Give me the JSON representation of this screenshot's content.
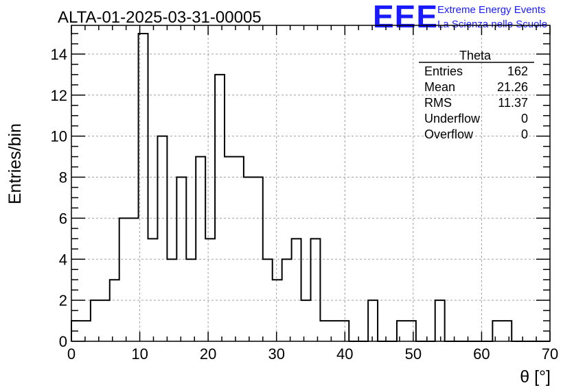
{
  "chart_data": {
    "type": "histogram",
    "title": "ALTA-01-2025-03-31-00005",
    "xlabel": "θ [°]",
    "ylabel": "Entries/bin",
    "xlim": [
      0,
      70
    ],
    "ylim": [
      0,
      15.4
    ],
    "bin_width": 1.4,
    "bin_start": 0,
    "values": [
      1,
      1,
      2,
      2,
      3,
      6,
      6,
      15,
      5,
      10,
      4,
      8,
      4,
      9,
      5,
      13,
      9,
      9,
      8,
      8,
      4,
      3,
      4,
      5,
      2,
      5,
      1,
      1,
      1,
      0,
      0,
      2,
      0,
      0,
      1,
      1,
      0,
      0,
      2,
      0,
      0,
      0,
      0,
      0,
      1,
      1,
      0,
      0,
      0,
      0
    ],
    "x_ticks": [
      "0",
      "10",
      "20",
      "30",
      "40",
      "50",
      "60",
      "70"
    ],
    "y_ticks": [
      "0",
      "2",
      "4",
      "6",
      "8",
      "10",
      "12",
      "14"
    ],
    "grid": true,
    "stats_box": {
      "name": "Theta",
      "rows": [
        {
          "label": "Entries",
          "value": "162"
        },
        {
          "label": "Mean",
          "value": "21.26"
        },
        {
          "label": "RMS",
          "value": "11.37"
        },
        {
          "label": "Underflow",
          "value": "0"
        },
        {
          "label": "Overflow",
          "value": "0"
        }
      ]
    }
  },
  "logo": {
    "mark": "EEE",
    "line1": "Extreme Energy Events",
    "line2": "La Scienza nelle Scuole"
  },
  "colors": {
    "logo": "#1a1aff",
    "grid": "#a0a0a0",
    "line": "#000000"
  }
}
